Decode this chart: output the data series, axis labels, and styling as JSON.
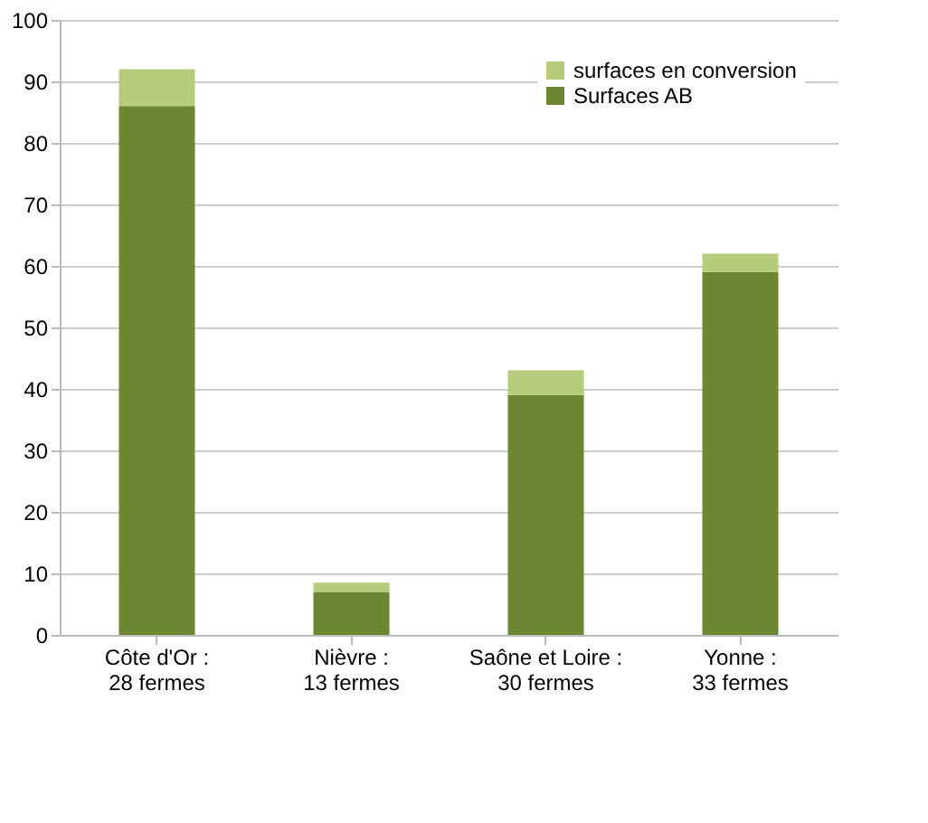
{
  "chart_data": {
    "type": "bar",
    "stacked": true,
    "categories": [
      "Côte d'Or : 28 fermes",
      "Nièvre : 13 fermes",
      "Saône et Loire : 30 fermes",
      "Yonne : 33 fermes"
    ],
    "series": [
      {
        "name": "Surfaces AB",
        "color": "#6b8731",
        "values": [
          86,
          7,
          39,
          59
        ]
      },
      {
        "name": "surfaces en conversion",
        "color": "#b5cc7a",
        "values": [
          6,
          1.5,
          4,
          3
        ]
      }
    ],
    "ylim": [
      0,
      100
    ],
    "yticks": [
      0,
      10,
      20,
      30,
      40,
      50,
      60,
      70,
      80,
      90,
      100
    ],
    "grid": "y",
    "legend": "top right"
  }
}
